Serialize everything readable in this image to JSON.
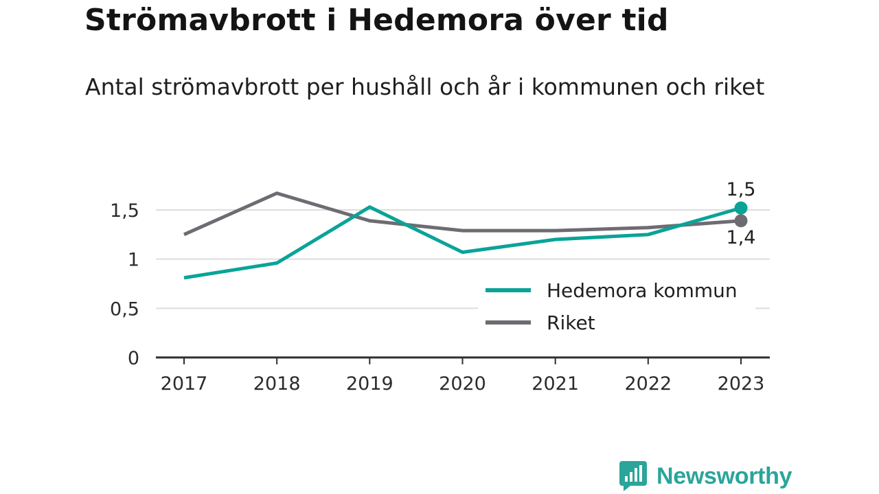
{
  "title": "Strömavbrott i Hedemora över tid",
  "subtitle": "Antal strömavbrott per hushåll och år i kommunen och riket",
  "brand": {
    "name": "Newsworthy",
    "icon": "newsworthy-logo-icon",
    "color": "#2aa59a"
  },
  "chart_data": {
    "type": "line",
    "title": "Strömavbrott i Hedemora över tid",
    "subtitle": "Antal strömavbrott per hushåll och år i kommunen och riket",
    "xlabel": "",
    "ylabel": "",
    "categories": [
      "2017",
      "2018",
      "2019",
      "2020",
      "2021",
      "2022",
      "2023"
    ],
    "y_ticks": [
      0,
      0.5,
      1,
      1.5
    ],
    "y_tick_labels": [
      "0",
      "0,5",
      "1",
      "1,5"
    ],
    "ylim": [
      0,
      1.75
    ],
    "grid": true,
    "legend_position": "bottom-right",
    "series": [
      {
        "name": "Hedemora kommun",
        "color": "#0aa398",
        "values": [
          0.81,
          0.96,
          1.53,
          1.07,
          1.2,
          1.25,
          1.52
        ],
        "end_label": "1,5",
        "end_label_position": "above"
      },
      {
        "name": "Riket",
        "color": "#6e6c72",
        "values": [
          1.25,
          1.67,
          1.39,
          1.29,
          1.29,
          1.32,
          1.39
        ],
        "end_label": "1,4",
        "end_label_position": "below"
      }
    ]
  }
}
